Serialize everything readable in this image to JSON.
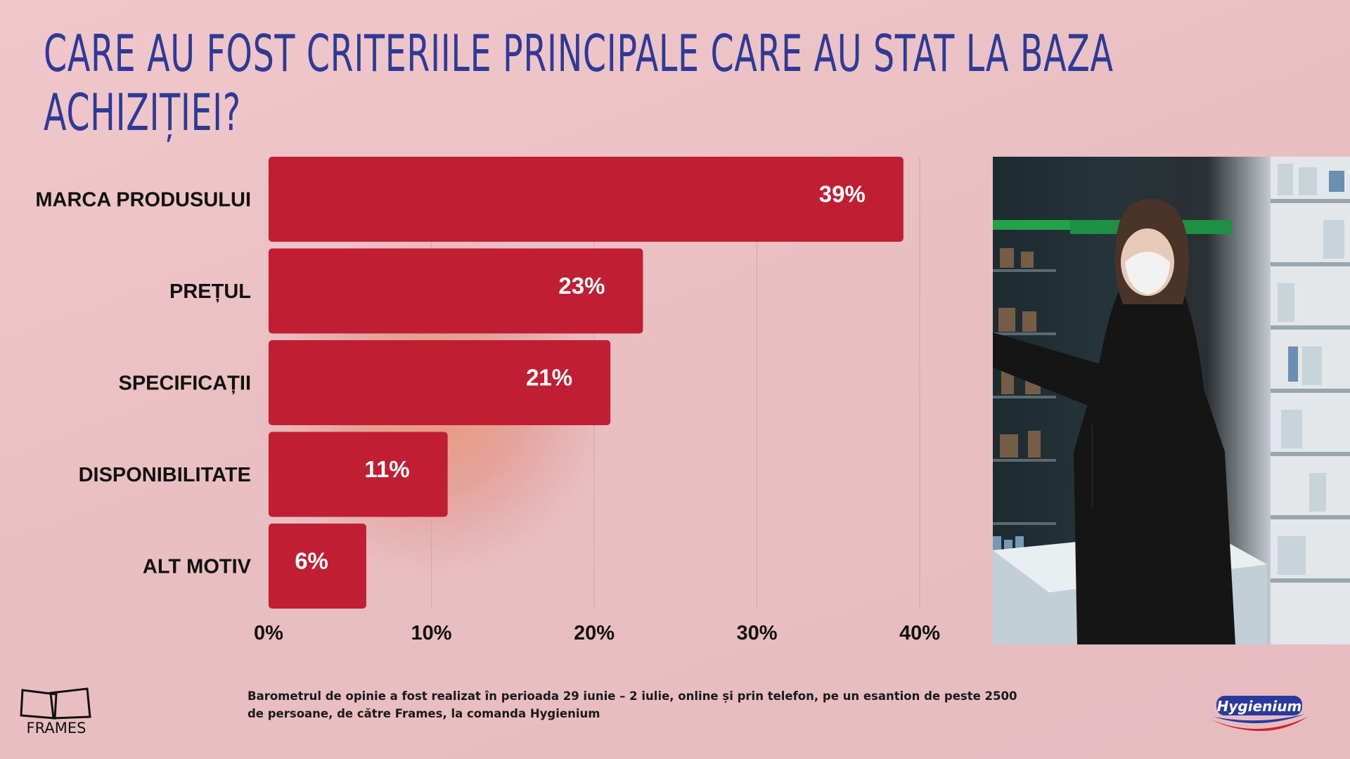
{
  "title": "CARE AU FOST CRITERIILE PRINCIPALE CARE AU STAT LA BAZA ACHIZIȚIEI?",
  "chart_data": {
    "type": "bar",
    "orientation": "horizontal",
    "categories": [
      "MARCA PRODUSULUI",
      "PREȚUL",
      "SPECIFICAȚII",
      "DISPONIBILITATE",
      "ALT MOTIV"
    ],
    "values": [
      39,
      23,
      21,
      11,
      6
    ],
    "value_labels": [
      "39%",
      "23%",
      "21%",
      "11%",
      "6%"
    ],
    "xlim": [
      0,
      40
    ],
    "x_ticks": [
      "0%",
      "10%",
      "20%",
      "30%",
      "40%"
    ],
    "grid": true,
    "bar_color": "#bf1e33"
  },
  "footnote": "Barometrul de opinie a fost realizat în perioada 29 iunie – 2 iulie, online și prin telefon, pe un esantion de peste 2500 de persoane, de către Frames, la comanda Hygienium",
  "logos": {
    "frames": "FRAMES",
    "hygienium": "Hygienium"
  },
  "colors": {
    "title": "#2f3a96",
    "bar": "#bf1e33",
    "background": "#ecc3c7"
  },
  "photo_icon": "woman-with-mask-in-supermarket-photo"
}
